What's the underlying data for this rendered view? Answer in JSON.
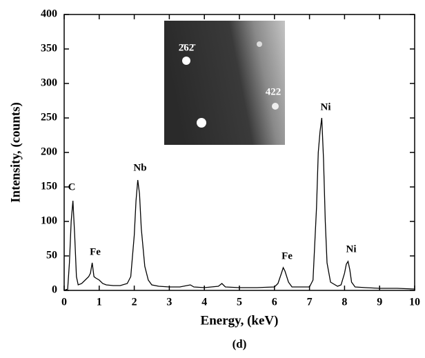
{
  "chart_data": {
    "type": "line",
    "color": "#000000",
    "xlabel": "Energy, (keV)",
    "ylabel": "Intensity, (counts)",
    "caption": "(d)",
    "xlim": [
      0,
      10
    ],
    "ylim": [
      0,
      400
    ],
    "xticks": [
      0,
      1,
      2,
      3,
      4,
      5,
      6,
      7,
      8,
      9,
      10
    ],
    "yticks": [
      0,
      50,
      100,
      150,
      200,
      250,
      300,
      350,
      400
    ],
    "annotations": [
      "C",
      "Fe",
      "Nb",
      "Fe",
      "Ni",
      "Ni"
    ],
    "inset_labels": [
      "2̄62̄",
      "422"
    ],
    "x": [
      0,
      0.1,
      0.15,
      0.2,
      0.25,
      0.3,
      0.35,
      0.4,
      0.5,
      0.6,
      0.7,
      0.75,
      0.8,
      0.85,
      0.9,
      1.0,
      1.1,
      1.2,
      1.4,
      1.6,
      1.8,
      1.9,
      2.0,
      2.05,
      2.1,
      2.15,
      2.2,
      2.3,
      2.4,
      2.5,
      2.7,
      3.0,
      3.3,
      3.6,
      3.7,
      4.0,
      4.4,
      4.5,
      4.6,
      5.0,
      5.5,
      6.0,
      6.1,
      6.2,
      6.25,
      6.3,
      6.4,
      6.5,
      7.0,
      7.1,
      7.2,
      7.25,
      7.3,
      7.35,
      7.4,
      7.45,
      7.5,
      7.6,
      7.8,
      7.9,
      8.0,
      8.05,
      8.1,
      8.15,
      8.2,
      8.3,
      8.6,
      9.0,
      9.5,
      10.0
    ],
    "values": [
      0,
      2,
      40,
      100,
      130,
      80,
      20,
      8,
      10,
      15,
      20,
      25,
      40,
      20,
      18,
      15,
      10,
      8,
      7,
      7,
      10,
      20,
      80,
      130,
      160,
      140,
      90,
      35,
      15,
      8,
      6,
      5,
      5,
      8,
      5,
      4,
      6,
      10,
      5,
      4,
      4,
      5,
      10,
      25,
      33,
      28,
      12,
      5,
      5,
      15,
      120,
      200,
      230,
      250,
      190,
      100,
      40,
      12,
      6,
      8,
      25,
      38,
      42,
      30,
      12,
      5,
      4,
      3,
      3,
      2
    ]
  }
}
